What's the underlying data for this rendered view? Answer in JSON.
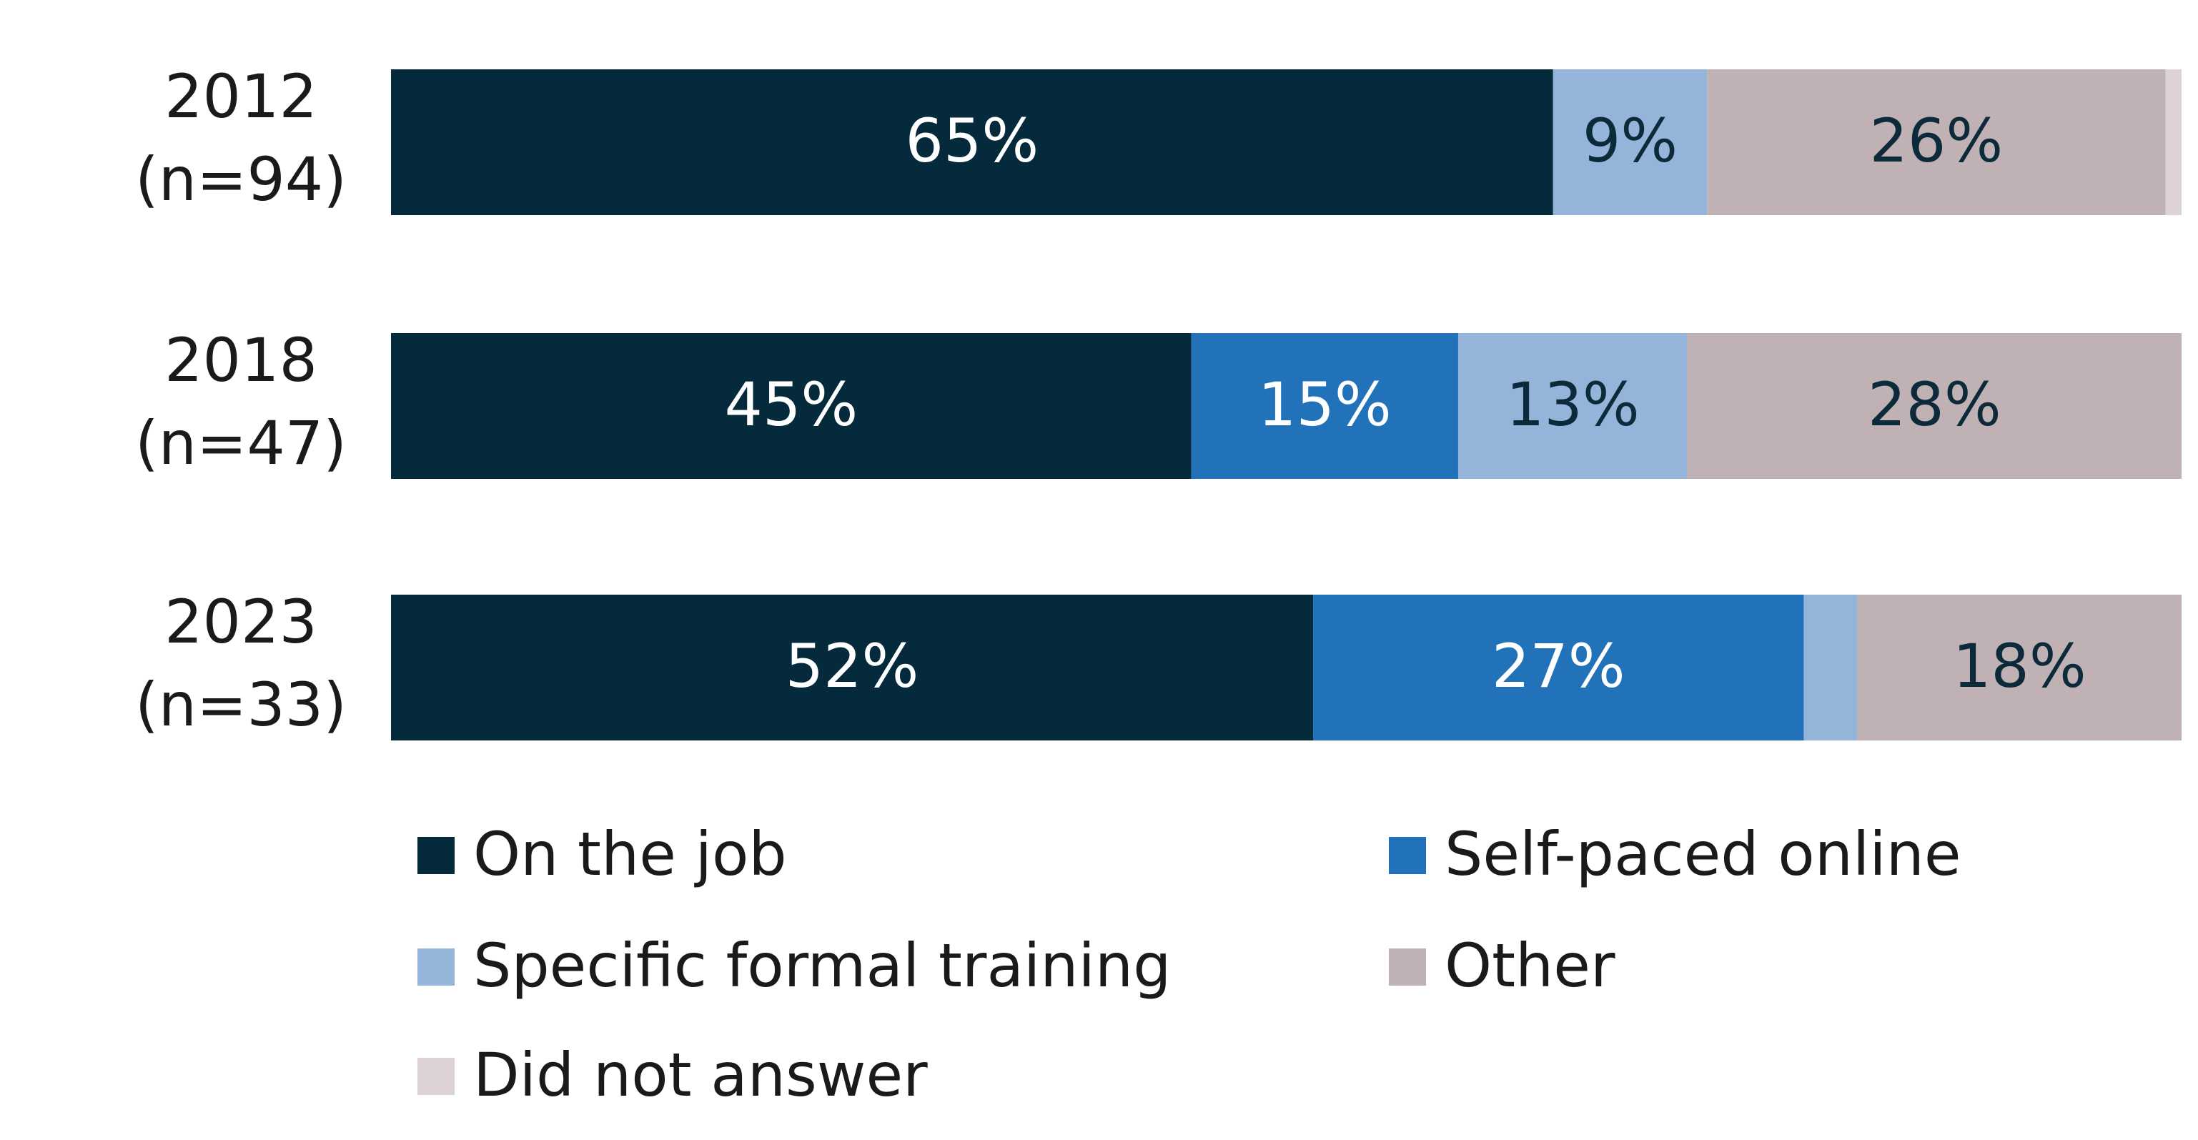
{
  "chart_data": {
    "type": "stacked_bar_horizontal",
    "categories": [
      "2012\n(n=94)",
      "2018\n(n=47)",
      "2023\n(n=33)"
    ],
    "xlim": [
      0,
      100
    ],
    "legend": "bottom",
    "series": [
      {
        "name": "On the job",
        "color": "#042a3c",
        "values": [
          64.9,
          44.7,
          51.5
        ],
        "value_labels": [
          "65%",
          "45%",
          "52%"
        ]
      },
      {
        "name": "Self-paced online",
        "color": "#2272b9",
        "values": [
          null,
          14.9,
          27.4
        ],
        "value_labels": [
          null,
          "15%",
          "27%"
        ]
      },
      {
        "name": "Specific formal training",
        "color": "#95b4d9",
        "values": [
          8.6,
          12.8,
          3.0
        ],
        "value_labels": [
          "9%",
          "13%",
          null
        ]
      },
      {
        "name": "Other",
        "color": "#c0b1b4",
        "values": [
          25.6,
          27.6,
          18.1
        ],
        "value_labels": [
          "26%",
          "28%",
          "18%"
        ]
      },
      {
        "name": "Did not answer",
        "color": "#ddd3d6",
        "values": [
          0.9,
          null,
          null
        ],
        "value_labels": [
          null,
          null,
          null
        ]
      }
    ]
  }
}
